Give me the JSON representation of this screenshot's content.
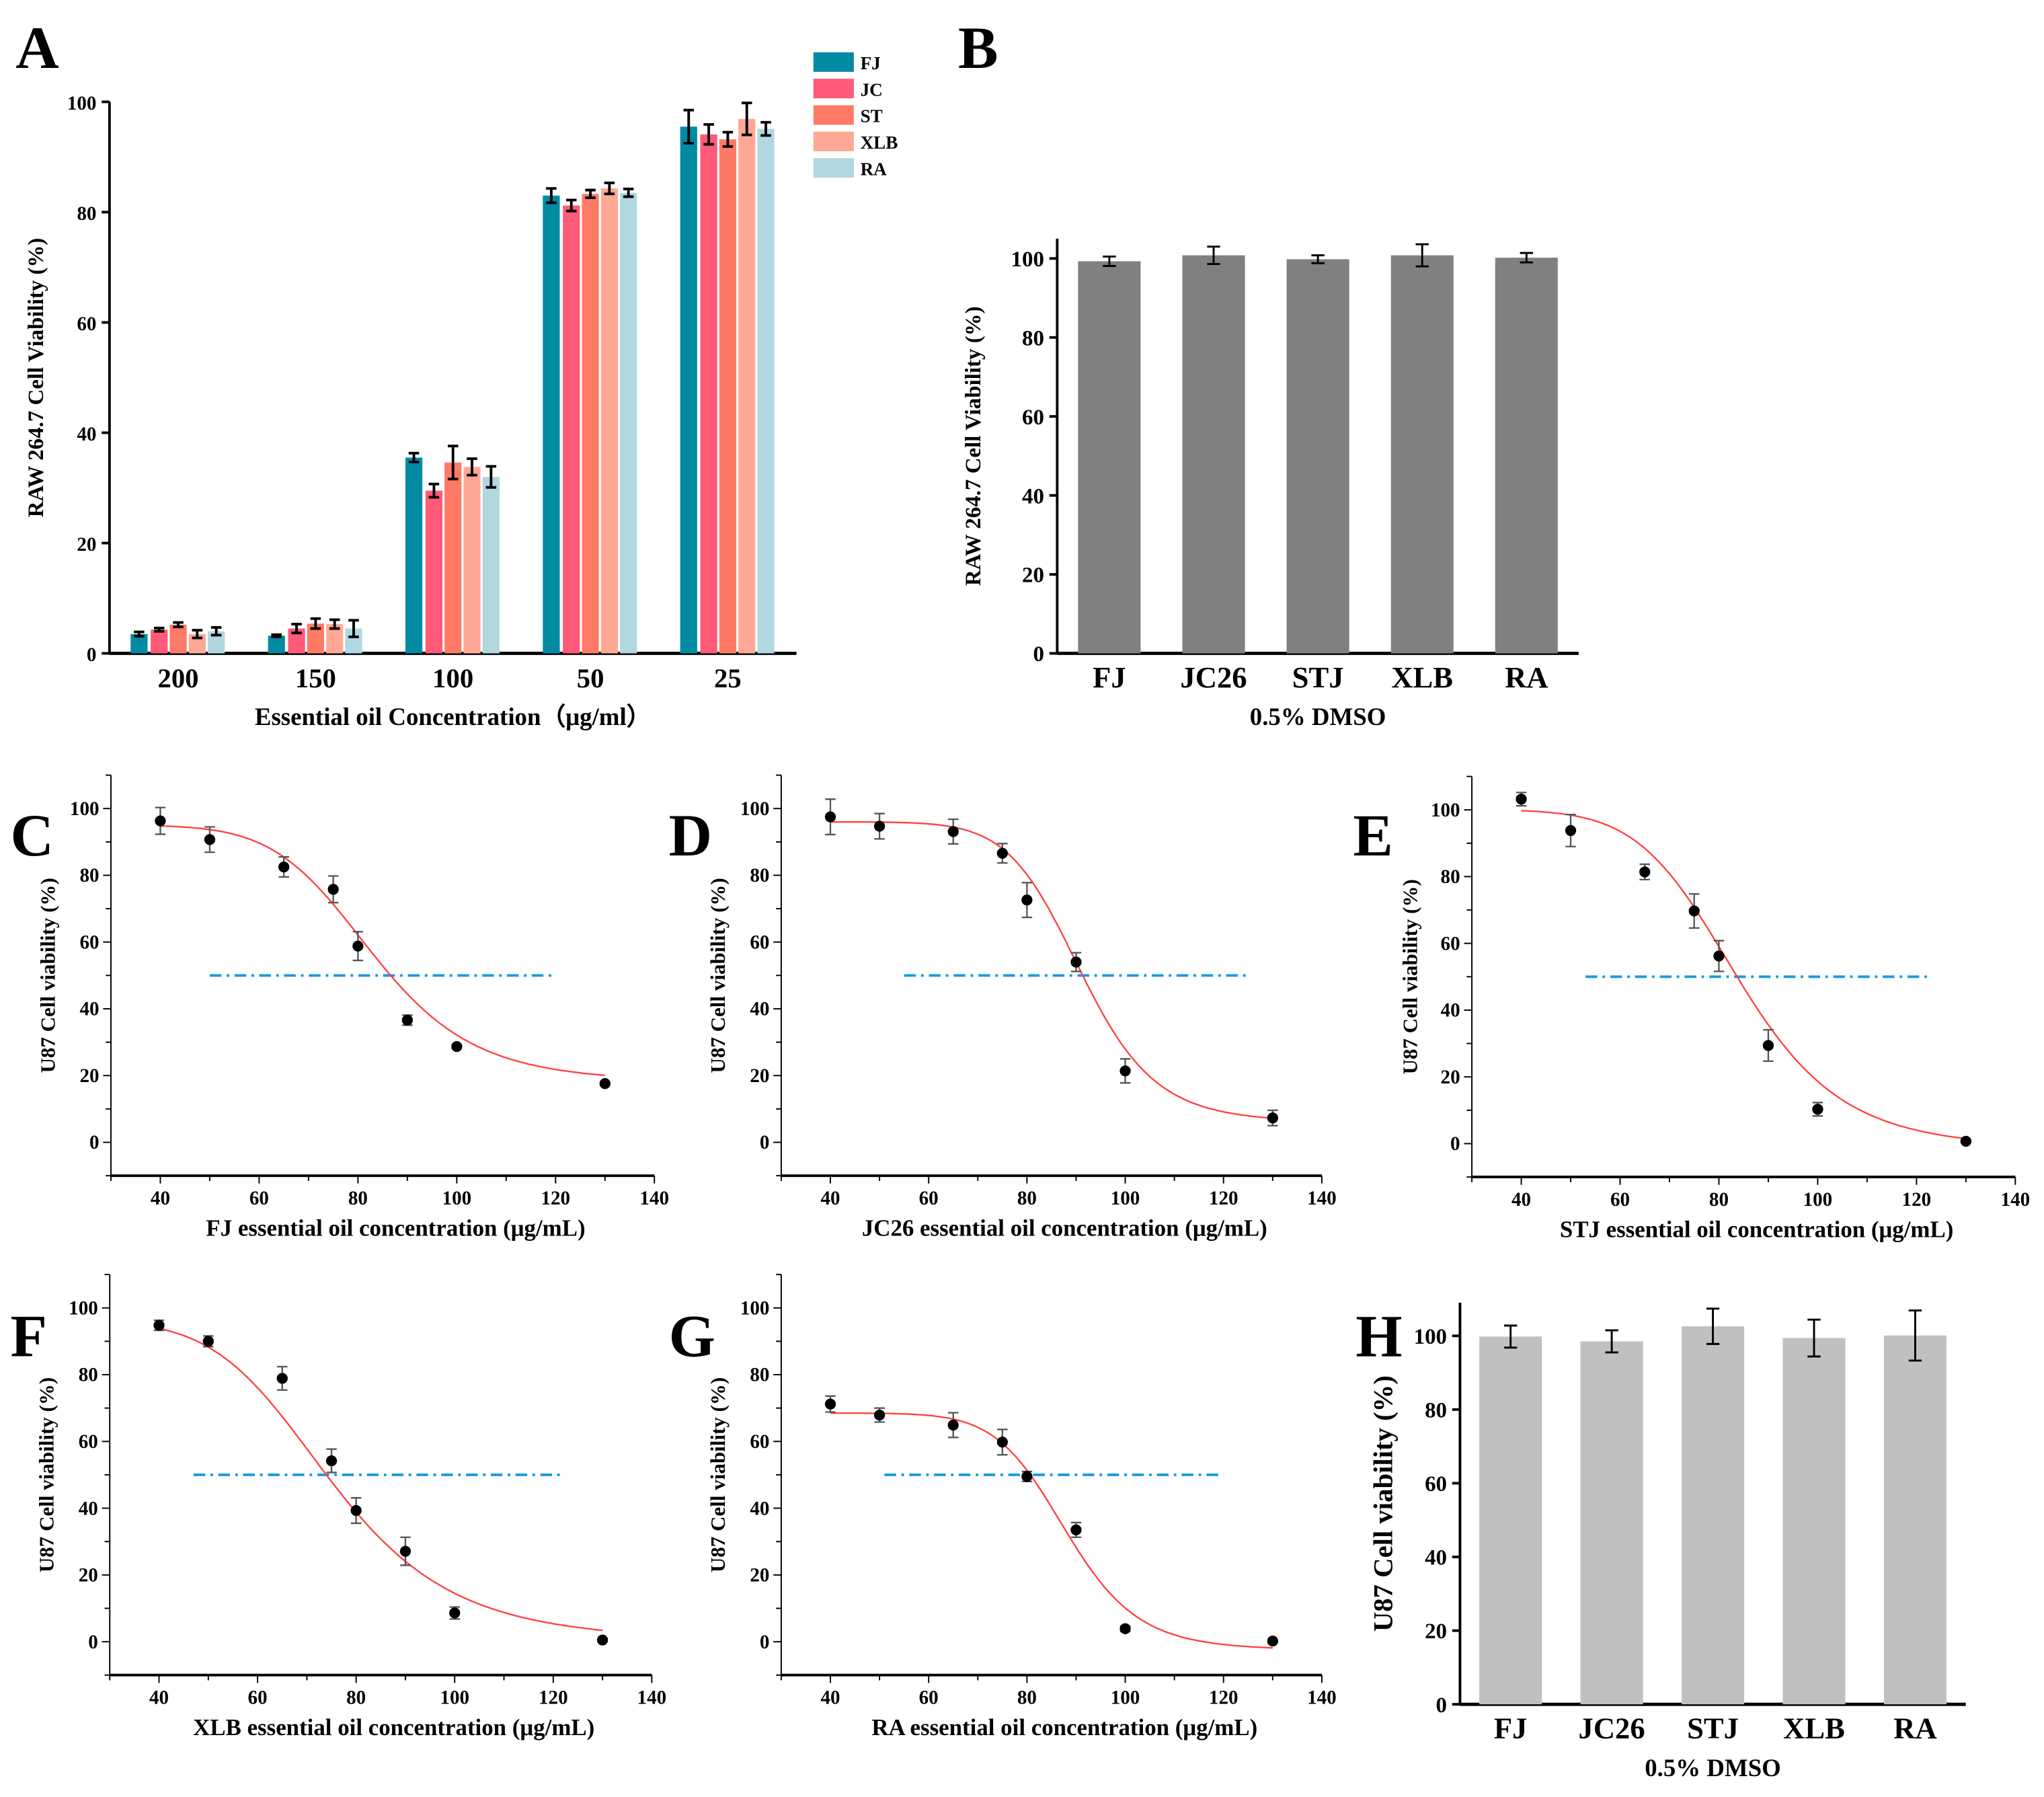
{
  "chart_data": [
    {
      "id": "A",
      "type": "bar",
      "panel_label": "A",
      "title": "",
      "xlabel": "Essential oil Concentration（μg/ml）",
      "ylabel": "RAW 264.7 Cell Viability (%)",
      "ylim": [
        0,
        100
      ],
      "yticks": [
        0,
        20,
        40,
        60,
        80,
        100
      ],
      "categories": [
        "200",
        "150",
        "100",
        "50",
        "25"
      ],
      "legend_position": "top-right",
      "series": [
        {
          "name": "FJ",
          "color": "#008ba3",
          "values": [
            3.5,
            3.2,
            35.5,
            83.0,
            95.5
          ],
          "errors": [
            0.4,
            0.2,
            0.8,
            1.3,
            3.0
          ]
        },
        {
          "name": "JC",
          "color": "#ff5a78",
          "values": [
            4.3,
            4.5,
            29.5,
            81.2,
            94.1
          ],
          "errors": [
            0.3,
            0.8,
            1.2,
            1.0,
            1.8
          ]
        },
        {
          "name": "ST",
          "color": "#ff7a66",
          "values": [
            5.2,
            5.4,
            34.6,
            83.3,
            93.2
          ],
          "errors": [
            0.4,
            0.9,
            3.0,
            0.7,
            1.3
          ]
        },
        {
          "name": "XLB",
          "color": "#ffa896",
          "values": [
            3.5,
            5.3,
            33.8,
            84.3,
            96.9
          ],
          "errors": [
            0.7,
            0.8,
            1.5,
            1.0,
            2.9
          ]
        },
        {
          "name": "RA",
          "color": "#b0d8de",
          "values": [
            4.0,
            4.5,
            32.0,
            83.5,
            95.1
          ],
          "errors": [
            0.7,
            1.5,
            1.9,
            0.7,
            1.2
          ]
        }
      ]
    },
    {
      "id": "B",
      "type": "bar",
      "panel_label": "B",
      "xlabel": "0.5% DMSO",
      "ylabel": "RAW 264.7 Cell Viability (%)",
      "ylim": [
        0,
        105
      ],
      "yticks": [
        0,
        20,
        40,
        60,
        80,
        100
      ],
      "categories": [
        "FJ",
        "JC26",
        "STJ",
        "XLB",
        "RA"
      ],
      "color": "#808080",
      "values": [
        99.3,
        100.8,
        99.8,
        100.8,
        100.2
      ],
      "errors": [
        1.2,
        2.2,
        1.0,
        2.8,
        1.2
      ]
    },
    {
      "id": "C",
      "type": "scatter",
      "panel_label": "C",
      "xlabel": "FJ essential oil concentration (μg/mL)",
      "ylabel": "U87 Cell viability (%)",
      "xlim": [
        30,
        140
      ],
      "ylim": [
        -10,
        110
      ],
      "xticks": [
        40,
        60,
        80,
        100,
        120,
        140
      ],
      "yticks": [
        0,
        20,
        40,
        60,
        80,
        100
      ],
      "x": [
        40,
        50,
        65,
        75,
        80,
        90,
        100,
        130
      ],
      "y": [
        96.3,
        90.7,
        82.5,
        75.8,
        58.8,
        36.6,
        28.7,
        17.6
      ],
      "errors": [
        4.0,
        3.8,
        3.0,
        4.0,
        4.3,
        1.5,
        0.5,
        0.5
      ],
      "fit": {
        "top": 95,
        "bottom": 18,
        "x50": 83,
        "hill": 8,
        "range": [
          40,
          130
        ],
        "color": "#ff4040"
      },
      "reference_line": {
        "y": 50,
        "x_range": [
          50,
          120
        ],
        "color": "#1a9be0"
      }
    },
    {
      "id": "D",
      "type": "scatter",
      "panel_label": "D",
      "xlabel": "JC26 essential oil concentration (μg/mL)",
      "ylabel": "U87 Cell viability (%)",
      "xlim": [
        30,
        140
      ],
      "ylim": [
        -10,
        110
      ],
      "xticks": [
        40,
        60,
        80,
        100,
        120,
        140
      ],
      "yticks": [
        0,
        20,
        40,
        60,
        80,
        100
      ],
      "x": [
        40,
        50,
        65,
        75,
        80,
        90,
        100,
        130
      ],
      "y": [
        97.5,
        94.7,
        93.1,
        86.6,
        72.6,
        54.0,
        21.4,
        7.3
      ],
      "errors": [
        5.3,
        3.8,
        3.7,
        2.9,
        5.2,
        2.8,
        3.6,
        2.3
      ],
      "fit": {
        "top": 96,
        "bottom": 6,
        "x50": 91,
        "hill": 12,
        "range": [
          40,
          130
        ],
        "color": "#ff4040"
      },
      "reference_line": {
        "y": 50,
        "x_range": [
          55,
          125
        ],
        "color": "#1a9be0"
      }
    },
    {
      "id": "E",
      "type": "scatter",
      "panel_label": "E",
      "xlabel": "STJ essential oil concentration (μg/mL)",
      "ylabel": "U87 Cell viability (%)",
      "xlim": [
        30,
        140
      ],
      "ylim": [
        -10,
        110
      ],
      "xticks": [
        40,
        60,
        80,
        100,
        120,
        140
      ],
      "yticks": [
        0,
        20,
        40,
        60,
        80,
        100
      ],
      "x": [
        40,
        50,
        65,
        75,
        80,
        90,
        100,
        130
      ],
      "y": [
        103.2,
        93.8,
        81.4,
        69.7,
        56.2,
        29.4,
        10.3,
        0.7
      ],
      "errors": [
        2.0,
        4.8,
        2.3,
        5.1,
        4.6,
        4.7,
        2.0,
        0.5
      ],
      "fit": {
        "top": 100,
        "bottom": -1.5,
        "x50": 84,
        "hill": 8,
        "range": [
          40,
          130
        ],
        "color": "#ff4040"
      },
      "reference_line": {
        "y": 50,
        "x_range": [
          53,
          123
        ],
        "color": "#1a9be0"
      }
    },
    {
      "id": "F",
      "type": "scatter",
      "panel_label": "F",
      "xlabel": "XLB essential oil concentration (μg/mL)",
      "ylabel": "U87 Cell viability (%)",
      "xlim": [
        30,
        140
      ],
      "ylim": [
        -10,
        110
      ],
      "xticks": [
        40,
        60,
        80,
        100,
        120,
        140
      ],
      "yticks": [
        0,
        20,
        40,
        60,
        80,
        100
      ],
      "x": [
        40,
        50,
        65,
        75,
        80,
        90,
        100,
        130
      ],
      "y": [
        94.8,
        90.0,
        78.9,
        54.2,
        39.3,
        27.1,
        8.6,
        0.5
      ],
      "errors": [
        1.5,
        1.6,
        3.5,
        3.5,
        3.8,
        4.2,
        1.8,
        0.3
      ],
      "fit": {
        "top": 96,
        "bottom": 0,
        "x50": 75,
        "hill": 6,
        "range": [
          40,
          130
        ],
        "color": "#ff4040"
      },
      "reference_line": {
        "y": 50,
        "x_range": [
          47,
          122
        ],
        "color": "#1a9be0"
      }
    },
    {
      "id": "G",
      "type": "scatter",
      "panel_label": "G",
      "xlabel": "RA essential oil concentration (μg/mL)",
      "ylabel": "U87 Cell viability (%)",
      "xlim": [
        30,
        140
      ],
      "ylim": [
        -10,
        110
      ],
      "xticks": [
        40,
        60,
        80,
        100,
        120,
        140
      ],
      "yticks": [
        0,
        20,
        40,
        60,
        80,
        100
      ],
      "x": [
        40,
        50,
        65,
        75,
        80,
        90,
        100,
        130
      ],
      "y": [
        71.2,
        67.9,
        64.9,
        59.8,
        49.5,
        33.5,
        3.9,
        0.2
      ],
      "errors": [
        2.4,
        2.1,
        3.7,
        3.8,
        1.5,
        2.2,
        0.8,
        0.3
      ],
      "fit": {
        "top": 68.5,
        "bottom": -2.5,
        "x50": 88,
        "hill": 12,
        "range": [
          40,
          130
        ],
        "color": "#ff4040"
      },
      "reference_line": {
        "y": 50,
        "x_range": [
          51,
          120
        ],
        "color": "#1a9be0"
      }
    },
    {
      "id": "H",
      "type": "bar",
      "panel_label": "H",
      "xlabel": "0.5% DMSO",
      "ylabel": "U87 Cell viability (%)",
      "ylim": [
        0,
        109
      ],
      "yticks": [
        0,
        20,
        40,
        60,
        80,
        100
      ],
      "categories": [
        "FJ",
        "JC26",
        "STJ",
        "XLB",
        "RA"
      ],
      "color": "#c0c0c0",
      "values": [
        99.8,
        98.5,
        102.6,
        99.4,
        100.1
      ],
      "errors": [
        3.0,
        3.0,
        4.8,
        5.0,
        6.8
      ]
    }
  ]
}
